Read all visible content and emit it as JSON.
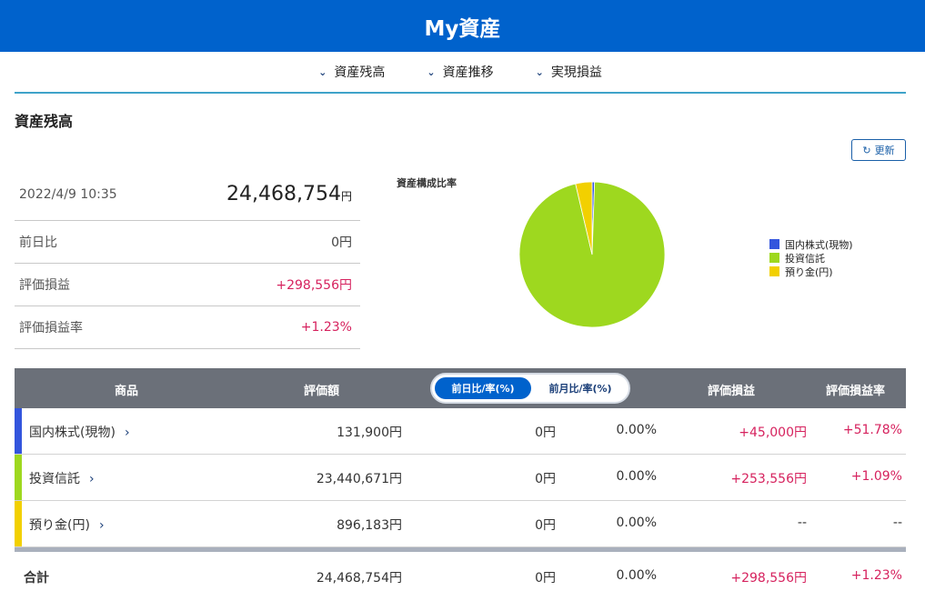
{
  "header": {
    "title": "My資産"
  },
  "nav": {
    "items": [
      "資産残高",
      "資産推移",
      "実現損益"
    ]
  },
  "section_title": "資産残高",
  "refresh_label": "更新",
  "summary": {
    "datetime": "2022/4/9 10:35",
    "total_value": "24,468,754",
    "yen": "円",
    "rows": [
      {
        "label": "前日比",
        "value": "0円"
      },
      {
        "label": "評価損益",
        "value": "+298,556円"
      },
      {
        "label": "評価損益率",
        "value": "+1.23%"
      }
    ]
  },
  "chart_title": "資産構成比率",
  "chart_data": {
    "type": "pie",
    "labels": [
      "国内株式(現物)",
      "投資信託",
      "預り金(円)"
    ],
    "values": [
      131900,
      23440671,
      896183
    ],
    "colors": [
      "#3355dd",
      "#9ed81f",
      "#f2d000"
    ],
    "legend_position": "right"
  },
  "table": {
    "headers": {
      "product": "商品",
      "value": "評価額",
      "toggle_on": "前日比/率(%)",
      "toggle_off": "前月比/率(%)",
      "pl": "評価損益",
      "pl_rate": "評価損益率"
    },
    "rows": [
      {
        "name": "国内株式(現物)",
        "value": "131,900円",
        "day": "0円",
        "rate": "0.00%",
        "pl": "+45,000円",
        "pl_rate": "+51.78%",
        "color": "#3355dd"
      },
      {
        "name": "投資信託",
        "value": "23,440,671円",
        "day": "0円",
        "rate": "0.00%",
        "pl": "+253,556円",
        "pl_rate": "+1.09%",
        "color": "#9ed81f"
      },
      {
        "name": "預り金(円)",
        "value": "896,183円",
        "day": "0円",
        "rate": "0.00%",
        "pl": "--",
        "pl_rate": "--",
        "color": "#f2d000"
      }
    ],
    "total": {
      "name": "合計",
      "value": "24,468,754円",
      "day": "0円",
      "rate": "0.00%",
      "pl": "+298,556円",
      "pl_rate": "+1.23%"
    }
  },
  "icons": {
    "nav_chevron": "chevron-down-icon",
    "row_chevron": "chevron-right-icon",
    "refresh": "refresh-icon"
  }
}
